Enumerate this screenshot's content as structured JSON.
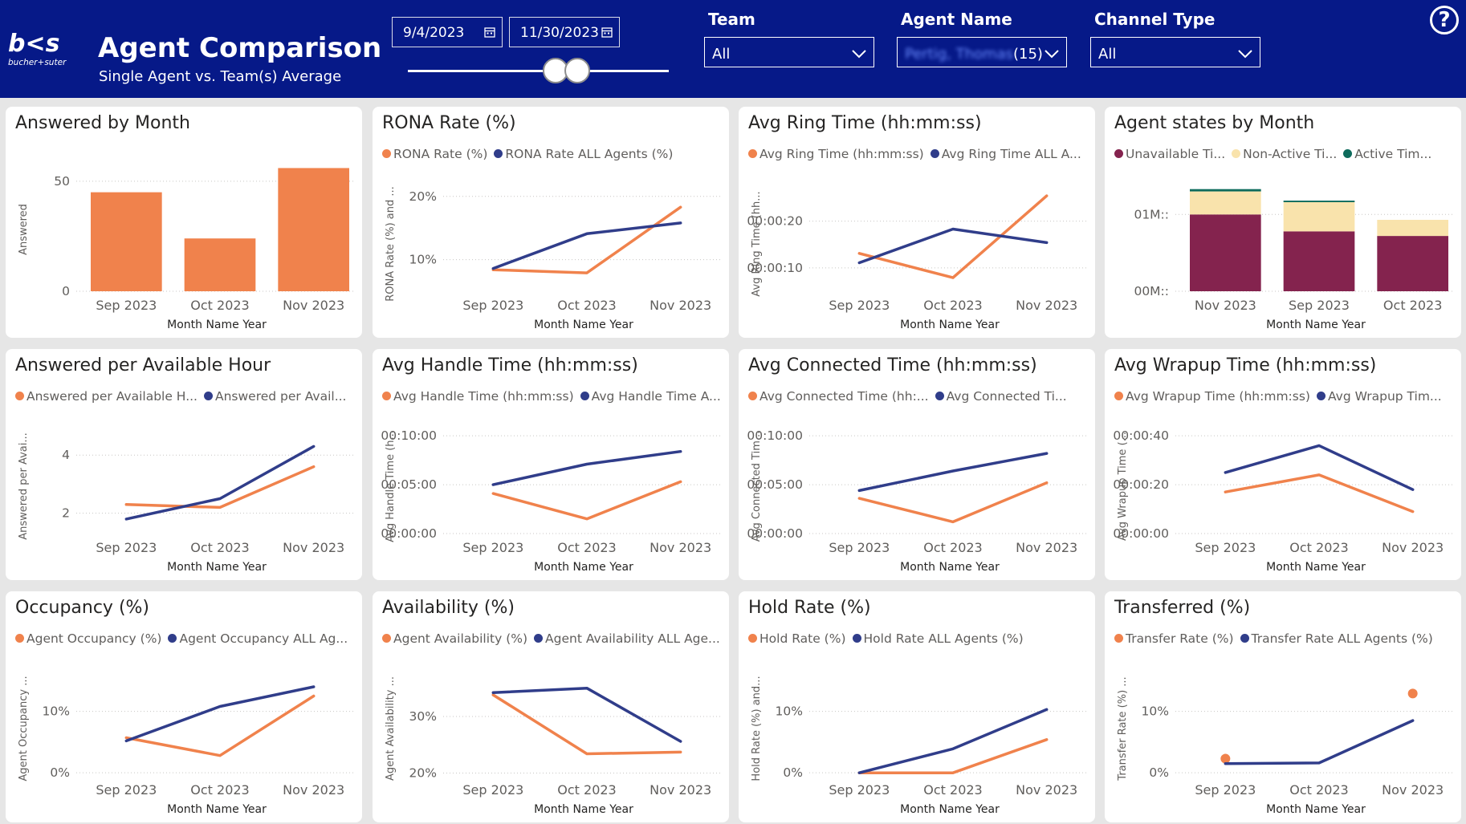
{
  "header": {
    "title": "Agent Comparison",
    "subtitle": "Single Agent vs. Team(s) Average",
    "logo_text": "bucher+suter",
    "start_date": "9/4/2023",
    "end_date": "11/30/2023",
    "team_label": "Team",
    "team_value": "All",
    "agent_label": "Agent Name",
    "agent_value_blurred": "Pertig, Thomas",
    "agent_count": "(15)",
    "channel_label": "Channel Type",
    "channel_value": "All",
    "help": "?"
  },
  "colors": {
    "orange": "#f0824c",
    "navy": "#303d8a",
    "purple": "#84234e",
    "cream": "#f9e3ac",
    "teal": "#0e6b5c",
    "header": "#061988"
  },
  "chart_data": [
    {
      "id": "answered-by-month",
      "type": "bar",
      "title": "Answered by Month",
      "categories": [
        "Sep 2023",
        "Oct 2023",
        "Nov 2023"
      ],
      "values": [
        45,
        24,
        56
      ],
      "xlabel": "Month Name Year",
      "ylabel": "Answered",
      "ylim": [
        0,
        62
      ],
      "yticks": [
        {
          "v": 0,
          "label": "0"
        },
        {
          "v": 50,
          "label": "50"
        }
      ]
    },
    {
      "id": "rona-rate",
      "type": "line",
      "title": "RONA Rate (%)",
      "legend": [
        "RONA Rate (%)",
        "RONA Rate ALL Agents (%)"
      ],
      "categories": [
        "Sep 2023",
        "Oct 2023",
        "Nov 2023"
      ],
      "series": [
        {
          "name": "RONA Rate (%)",
          "values": [
            8.4,
            7.9,
            18.3
          ]
        },
        {
          "name": "RONA Rate ALL Agents (%)",
          "values": [
            8.6,
            14.1,
            15.8
          ]
        }
      ],
      "xlabel": "Month Name Year",
      "ylabel": "RONA Rate (%) and ...",
      "ylim": [
        5,
        22
      ],
      "yticks": [
        {
          "v": 10,
          "label": "10%"
        },
        {
          "v": 20,
          "label": "20%"
        }
      ]
    },
    {
      "id": "avg-ring-time",
      "type": "line",
      "title": "Avg Ring Time (hh:mm:ss)",
      "legend": [
        "Avg Ring Time (hh:mm:ss)",
        "Avg Ring Time ALL A..."
      ],
      "categories": [
        "Sep 2023",
        "Oct 2023",
        "Nov 2023"
      ],
      "series": [
        {
          "name": "Avg Ring Time (hh:mm:ss)",
          "values": [
            13.1,
            7.9,
            25.4
          ]
        },
        {
          "name": "Avg Ring Time ALL Agents",
          "values": [
            11.1,
            18.3,
            15.4
          ]
        }
      ],
      "xlabel": "Month Name Year",
      "ylabel": "Avg Ring Time (hh...",
      "ylim": [
        5,
        28
      ],
      "yticks": [
        {
          "v": 10,
          "label": "00:00:10"
        },
        {
          "v": 20,
          "label": "00:00:20"
        }
      ]
    },
    {
      "id": "agent-states",
      "type": "bar",
      "stacked": true,
      "title": "Agent states by Month",
      "legend": [
        "Unavailable Ti...",
        "Non-Active Ti...",
        "Active Tim..."
      ],
      "categories": [
        "Nov 2023",
        "Sep 2023",
        "Oct 2023"
      ],
      "series": [
        {
          "name": "Unavailable Time",
          "values": [
            1.0,
            0.78,
            0.72
          ]
        },
        {
          "name": "Non-Active Time",
          "values": [
            0.3,
            0.38,
            0.21
          ]
        },
        {
          "name": "Active Time",
          "values": [
            0.03,
            0.02,
            0.0
          ]
        }
      ],
      "xlabel": "Month Name Year",
      "ylabel": "",
      "ylim": [
        0,
        1.4
      ],
      "yticks": [
        {
          "v": 0,
          "label": "00M::"
        },
        {
          "v": 1,
          "label": "01M::"
        }
      ]
    },
    {
      "id": "answered-per-hour",
      "type": "line",
      "title": "Answered per Available Hour",
      "legend": [
        "Answered per Available H...",
        "Answered per Avail..."
      ],
      "categories": [
        "Sep 2023",
        "Oct 2023",
        "Nov 2023"
      ],
      "series": [
        {
          "name": "Answered per Available Hour",
          "values": [
            2.3,
            2.2,
            3.6
          ]
        },
        {
          "name": "Answered per Available Hour ALL",
          "values": [
            1.8,
            2.5,
            4.3
          ]
        }
      ],
      "xlabel": "Month Name Year",
      "ylabel": "Answered per Avai...",
      "ylim": [
        1.3,
        5
      ],
      "yticks": [
        {
          "v": 2,
          "label": "2"
        },
        {
          "v": 4,
          "label": "4"
        }
      ]
    },
    {
      "id": "avg-handle-time",
      "type": "line",
      "title": "Avg Handle Time (hh:mm:ss)",
      "legend": [
        "Avg Handle Time (hh:mm:ss)",
        "Avg Handle Time A..."
      ],
      "categories": [
        "Sep 2023",
        "Oct 2023",
        "Nov 2023"
      ],
      "series": [
        {
          "name": "Avg Handle Time (hh:mm:ss)",
          "values": [
            4.1,
            1.5,
            5.3
          ]
        },
        {
          "name": "Avg Handle Time ALL Agents",
          "values": [
            5.0,
            7.1,
            8.4
          ]
        }
      ],
      "xlabel": "Month Name Year",
      "ylabel": "Avg Handle Time (h...",
      "ylim": [
        0,
        11
      ],
      "yticks": [
        {
          "v": 0,
          "label": "00:00:00"
        },
        {
          "v": 5,
          "label": "00:05:00"
        },
        {
          "v": 10,
          "label": "00:10:00"
        }
      ]
    },
    {
      "id": "avg-connected-time",
      "type": "line",
      "title": "Avg Connected Time (hh:mm:ss)",
      "legend": [
        "Avg Connected Time (hh:...",
        "Avg Connected Ti..."
      ],
      "categories": [
        "Sep 2023",
        "Oct 2023",
        "Nov 2023"
      ],
      "series": [
        {
          "name": "Avg Connected Time (hh:mm:ss)",
          "values": [
            3.6,
            1.2,
            5.2
          ]
        },
        {
          "name": "Avg Connected Time ALL Agents",
          "values": [
            4.4,
            6.4,
            8.2
          ]
        }
      ],
      "xlabel": "Month Name Year",
      "ylabel": "Avg Connected Tim...",
      "ylim": [
        0,
        11
      ],
      "yticks": [
        {
          "v": 0,
          "label": "00:00:00"
        },
        {
          "v": 5,
          "label": "00:05:00"
        },
        {
          "v": 10,
          "label": "00:10:00"
        }
      ]
    },
    {
      "id": "avg-wrapup-time",
      "type": "line",
      "title": "Avg Wrapup Time (hh:mm:ss)",
      "legend": [
        "Avg Wrapup Time (hh:mm:ss)",
        "Avg Wrapup Tim..."
      ],
      "categories": [
        "Sep 2023",
        "Oct 2023",
        "Nov 2023"
      ],
      "series": [
        {
          "name": "Avg Wrapup Time (hh:mm:ss)",
          "values": [
            17,
            24,
            9
          ]
        },
        {
          "name": "Avg Wrapup Time ALL Agents",
          "values": [
            25,
            36,
            18
          ]
        }
      ],
      "xlabel": "Month Name Year",
      "ylabel": "Avg Wrapup Time (...",
      "ylim": [
        0,
        44
      ],
      "yticks": [
        {
          "v": 0,
          "label": "00:00:00"
        },
        {
          "v": 20,
          "label": "00:00:20"
        },
        {
          "v": 40,
          "label": "00:00:40"
        }
      ]
    },
    {
      "id": "occupancy",
      "type": "line",
      "title": "Occupancy (%)",
      "legend": [
        "Agent Occupancy (%)",
        "Agent Occupancy ALL Ag..."
      ],
      "categories": [
        "Sep 2023",
        "Oct 2023",
        "Nov 2023"
      ],
      "series": [
        {
          "name": "Agent Occupancy (%)",
          "values": [
            5.7,
            2.8,
            12.5
          ]
        },
        {
          "name": "Agent Occupancy ALL Agents (%)",
          "values": [
            5.2,
            10.8,
            14.0
          ]
        }
      ],
      "xlabel": "Month Name Year",
      "ylabel": "Agent Occupancy ...",
      "ylim": [
        -0.5,
        17
      ],
      "yticks": [
        {
          "v": 0,
          "label": "0%"
        },
        {
          "v": 10,
          "label": "10%"
        }
      ]
    },
    {
      "id": "availability",
      "type": "line",
      "title": "Availability (%)",
      "legend": [
        "Agent Availability (%)",
        "Agent Availability ALL Age..."
      ],
      "categories": [
        "Sep 2023",
        "Oct 2023",
        "Nov 2023"
      ],
      "series": [
        {
          "name": "Agent Availability (%)",
          "values": [
            33.8,
            23.4,
            23.7
          ]
        },
        {
          "name": "Agent Availability ALL Agents (%)",
          "values": [
            34.2,
            35.0,
            25.6
          ]
        }
      ],
      "xlabel": "Month Name Year",
      "ylabel": "Agent Availability ...",
      "ylim": [
        19.5,
        38.5
      ],
      "yticks": [
        {
          "v": 20,
          "label": "20%"
        },
        {
          "v": 30,
          "label": "30%"
        }
      ]
    },
    {
      "id": "hold-rate",
      "type": "line",
      "title": "Hold Rate (%)",
      "legend": [
        "Hold Rate (%)",
        "Hold Rate ALL Agents (%)"
      ],
      "categories": [
        "Sep 2023",
        "Oct 2023",
        "Nov 2023"
      ],
      "series": [
        {
          "name": "Hold Rate (%)",
          "values": [
            0,
            0,
            5.4
          ]
        },
        {
          "name": "Hold Rate ALL Agents (%)",
          "values": [
            0,
            3.9,
            10.3
          ]
        }
      ],
      "xlabel": "Month Name Year",
      "ylabel": "Hold Rate (%) and...",
      "ylim": [
        -0.5,
        17
      ],
      "yticks": [
        {
          "v": 0,
          "label": "0%"
        },
        {
          "v": 10,
          "label": "10%"
        }
      ]
    },
    {
      "id": "transferred",
      "type": "line",
      "title": "Transferred (%)",
      "legend": [
        "Transfer Rate (%)",
        "Transfer Rate ALL Agents (%)"
      ],
      "categories": [
        "Sep 2023",
        "Oct 2023",
        "Nov 2023"
      ],
      "series": [
        {
          "name": "Transfer Rate (%)",
          "values": [
            2.3,
            null,
            12.9
          ],
          "markers_only": true
        },
        {
          "name": "Transfer Rate ALL Agents (%)",
          "values": [
            1.5,
            1.6,
            8.5
          ]
        }
      ],
      "xlabel": "Month Name Year",
      "ylabel": "Transfer Rate (%) ...",
      "ylim": [
        -0.5,
        17
      ],
      "yticks": [
        {
          "v": 0,
          "label": "0%"
        },
        {
          "v": 10,
          "label": "10%"
        }
      ]
    }
  ]
}
